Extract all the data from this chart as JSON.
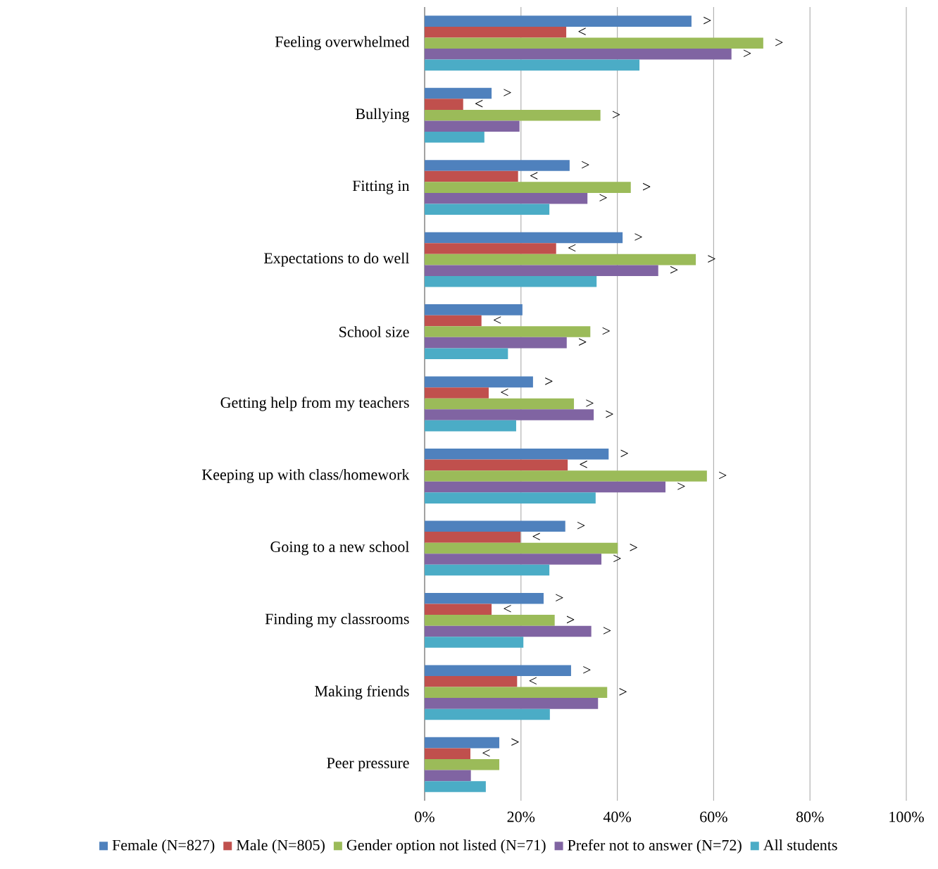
{
  "chart_data": {
    "type": "bar",
    "orientation": "horizontal",
    "categories": [
      "Feeling overwhelmed",
      "Bullying",
      "Fitting in",
      "Expectations to do well",
      "School size",
      "Getting help from my teachers",
      "Keeping up with class/homework",
      "Going to a new school",
      "Finding my classrooms",
      "Making friends",
      "Peer pressure"
    ],
    "series": [
      {
        "name": "Female (N=827)",
        "color": "#4f81bd",
        "values": [
          55.4,
          13.9,
          30.1,
          41.1,
          20.3,
          22.5,
          38.2,
          29.2,
          24.7,
          30.4,
          15.5
        ],
        "value_labels": [
          ">",
          ">",
          ">",
          ">",
          null,
          ">",
          ">",
          ">",
          ">",
          ">",
          ">"
        ]
      },
      {
        "name": "Male (N=805)",
        "color": "#c0504d",
        "values": [
          29.4,
          8.0,
          19.4,
          27.3,
          11.8,
          13.3,
          29.7,
          19.9,
          13.9,
          19.2,
          9.5
        ],
        "value_labels": [
          "<",
          "<",
          "<",
          "<",
          "<",
          "<",
          "<",
          "<",
          "<",
          "<",
          "<"
        ]
      },
      {
        "name": "Gender option not listed (N=71)",
        "color": "#9bbb59",
        "values": [
          70.3,
          36.5,
          42.8,
          56.3,
          34.4,
          31.0,
          58.6,
          40.1,
          27.0,
          37.9,
          15.5
        ],
        "value_labels": [
          ">",
          ">",
          ">",
          ">",
          ">",
          ">",
          ">",
          ">",
          ">",
          ">",
          null
        ]
      },
      {
        "name": "Prefer not to answer (N=72)",
        "color": "#8064a2",
        "values": [
          63.7,
          19.7,
          33.8,
          48.5,
          29.5,
          35.1,
          50.0,
          36.7,
          34.6,
          36.0,
          9.6
        ],
        "value_labels": [
          ">",
          null,
          ">",
          ">",
          ">",
          ">",
          ">",
          ">",
          ">",
          null,
          null
        ]
      },
      {
        "name": "All students",
        "color": "#4bacc6",
        "values": [
          44.6,
          12.4,
          25.9,
          35.7,
          17.3,
          19.0,
          35.5,
          25.9,
          20.5,
          26.0,
          12.7
        ]
      }
    ],
    "xlim": [
      0,
      100
    ],
    "xticks": [
      {
        "value": 0,
        "label": "0%"
      },
      {
        "value": 20,
        "label": "20%"
      },
      {
        "value": 40,
        "label": "40%"
      },
      {
        "value": 60,
        "label": "60%"
      },
      {
        "value": 80,
        "label": "80%"
      },
      {
        "value": 100,
        "label": "100%"
      }
    ],
    "grid": "x",
    "legend": "bottom"
  }
}
